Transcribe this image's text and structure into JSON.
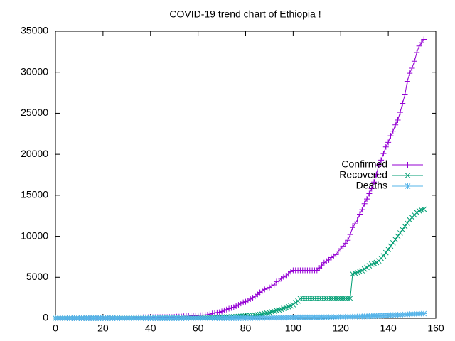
{
  "chart_data": {
    "type": "line",
    "title": "COVID-19 trend chart of Ethiopia !",
    "x": [
      0,
      1,
      2,
      3,
      4,
      5,
      6,
      7,
      8,
      9,
      10,
      11,
      12,
      13,
      14,
      15,
      16,
      17,
      18,
      19,
      20,
      21,
      22,
      23,
      24,
      25,
      26,
      27,
      28,
      29,
      30,
      31,
      32,
      33,
      34,
      35,
      36,
      37,
      38,
      39,
      40,
      41,
      42,
      43,
      44,
      45,
      46,
      47,
      48,
      49,
      50,
      51,
      52,
      53,
      54,
      55,
      56,
      57,
      58,
      59,
      60,
      61,
      62,
      63,
      64,
      65,
      66,
      67,
      68,
      69,
      70,
      71,
      72,
      73,
      74,
      75,
      76,
      77,
      78,
      79,
      80,
      81,
      82,
      83,
      84,
      85,
      86,
      87,
      88,
      89,
      90,
      91,
      92,
      93,
      94,
      95,
      96,
      97,
      98,
      99,
      100,
      101,
      102,
      103,
      104,
      105,
      106,
      107,
      108,
      109,
      110,
      111,
      112,
      113,
      114,
      115,
      116,
      117,
      118,
      119,
      120,
      121,
      122,
      123,
      124,
      125,
      126,
      127,
      128,
      129,
      130,
      131,
      132,
      133,
      134,
      135,
      136,
      137,
      138,
      139,
      140,
      141,
      142,
      143,
      144,
      145,
      146,
      147,
      148,
      149,
      150,
      151,
      152,
      153,
      154,
      155
    ],
    "series": [
      {
        "name": "Confirmed",
        "color": "#9400d3",
        "marker": "plus",
        "values": [
          1,
          1,
          1,
          1,
          1,
          4,
          5,
          6,
          9,
          11,
          12,
          12,
          16,
          21,
          23,
          25,
          26,
          29,
          35,
          38,
          43,
          43,
          44,
          52,
          55,
          56,
          65,
          69,
          71,
          74,
          82,
          85,
          92,
          96,
          105,
          108,
          111,
          114,
          116,
          117,
          122,
          123,
          124,
          126,
          130,
          131,
          133,
          135,
          140,
          145,
          162,
          191,
          194,
          210,
          239,
          261,
          263,
          287,
          306,
          317,
          352,
          365,
          389,
          399,
          434,
          494,
          582,
          655,
          701,
          731,
          831,
          968,
          1063,
          1172,
          1257,
          1344,
          1486,
          1636,
          1805,
          1934,
          2020,
          2156,
          2336,
          2506,
          2670,
          2915,
          3166,
          3345,
          3521,
          3630,
          3759,
          3954,
          4070,
          4469,
          4532,
          4848,
          5034,
          5175,
          5425,
          5689,
          5846,
          5846,
          5846,
          5846,
          5846,
          5846,
          5846,
          5846,
          5846,
          5846,
          5846,
          6127,
          6386,
          6774,
          6973,
          7120,
          7402,
          7560,
          7766,
          8181,
          8475,
          8803,
          9147,
          9503,
          10207,
          11072,
          11524,
          12000,
          12693,
          13248,
          13968,
          14547,
          15200,
          15810,
          16615,
          17530,
          18706,
          19289,
          20090,
          20900,
          21452,
          22253,
          22818,
          23591,
          24175,
          25118,
          26204,
          27242,
          28894,
          29876,
          30500,
          31336,
          32400,
          33200,
          33600,
          34000
        ]
      },
      {
        "name": "Recovered",
        "color": "#009e73",
        "marker": "cross",
        "values": [
          0,
          0,
          0,
          0,
          0,
          0,
          0,
          0,
          0,
          0,
          0,
          2,
          2,
          2,
          4,
          4,
          4,
          4,
          4,
          4,
          4,
          4,
          4,
          10,
          10,
          15,
          15,
          16,
          16,
          16,
          16,
          16,
          16,
          16,
          16,
          16,
          16,
          16,
          16,
          16,
          16,
          16,
          16,
          21,
          21,
          21,
          21,
          21,
          21,
          21,
          25,
          29,
          29,
          29,
          29,
          29,
          29,
          29,
          30,
          30,
          35,
          40,
          50,
          60,
          70,
          80,
          90,
          100,
          110,
          120,
          130,
          140,
          150,
          160,
          170,
          180,
          200,
          220,
          240,
          260,
          280,
          300,
          320,
          340,
          380,
          420,
          460,
          500,
          560,
          620,
          700,
          780,
          860,
          940,
          1020,
          1100,
          1200,
          1300,
          1400,
          1500,
          1650,
          1900,
          2100,
          2400,
          2430,
          2430,
          2430,
          2430,
          2430,
          2430,
          2430,
          2430,
          2430,
          2430,
          2430,
          2430,
          2430,
          2430,
          2430,
          2430,
          2430,
          2430,
          2430,
          2430,
          2430,
          5400,
          5500,
          5600,
          5700,
          5800,
          6000,
          6200,
          6400,
          6600,
          6700,
          6800,
          7000,
          7300,
          7600,
          8000,
          8400,
          8800,
          9200,
          9600,
          10000,
          10400,
          10800,
          11200,
          11600,
          12000,
          12300,
          12600,
          12900,
          13100,
          13200,
          13300
        ]
      },
      {
        "name": "Deaths",
        "color": "#56b4e9",
        "marker": "star",
        "values": [
          0,
          0,
          0,
          0,
          0,
          0,
          0,
          0,
          0,
          0,
          0,
          0,
          0,
          0,
          0,
          0,
          0,
          0,
          0,
          0,
          0,
          0,
          0,
          0,
          0,
          0,
          0,
          0,
          0,
          0,
          1,
          1,
          1,
          2,
          2,
          2,
          2,
          2,
          3,
          3,
          3,
          3,
          3,
          3,
          3,
          3,
          3,
          4,
          4,
          5,
          5,
          5,
          5,
          5,
          5,
          5,
          5,
          5,
          5,
          5,
          5,
          5,
          6,
          6,
          6,
          6,
          7,
          7,
          7,
          7,
          8,
          8,
          8,
          9,
          11,
          12,
          13,
          14,
          16,
          18,
          20,
          22,
          25,
          28,
          32,
          36,
          40,
          43,
          46,
          50,
          55,
          60,
          63,
          66,
          70,
          74,
          78,
          81,
          86,
          91,
          95,
          100,
          103,
          103,
          103,
          103,
          103,
          103,
          103,
          103,
          103,
          105,
          110,
          118,
          124,
          128,
          136,
          140,
          150,
          160,
          170,
          175,
          180,
          185,
          190,
          195,
          200,
          210,
          220,
          228,
          230,
          240,
          250,
          260,
          270,
          285,
          300,
          312,
          330,
          345,
          360,
          375,
          390,
          400,
          410,
          420,
          440,
          460,
          480,
          500,
          510,
          520,
          530,
          540,
          550,
          560
        ]
      }
    ],
    "xlim": [
      0,
      160
    ],
    "xticks": [
      0,
      20,
      40,
      60,
      80,
      100,
      120,
      140,
      160
    ],
    "ylim": [
      0,
      35000
    ],
    "yticks": [
      0,
      5000,
      10000,
      15000,
      20000,
      25000,
      30000,
      35000
    ],
    "grid": false,
    "legend": "right"
  }
}
